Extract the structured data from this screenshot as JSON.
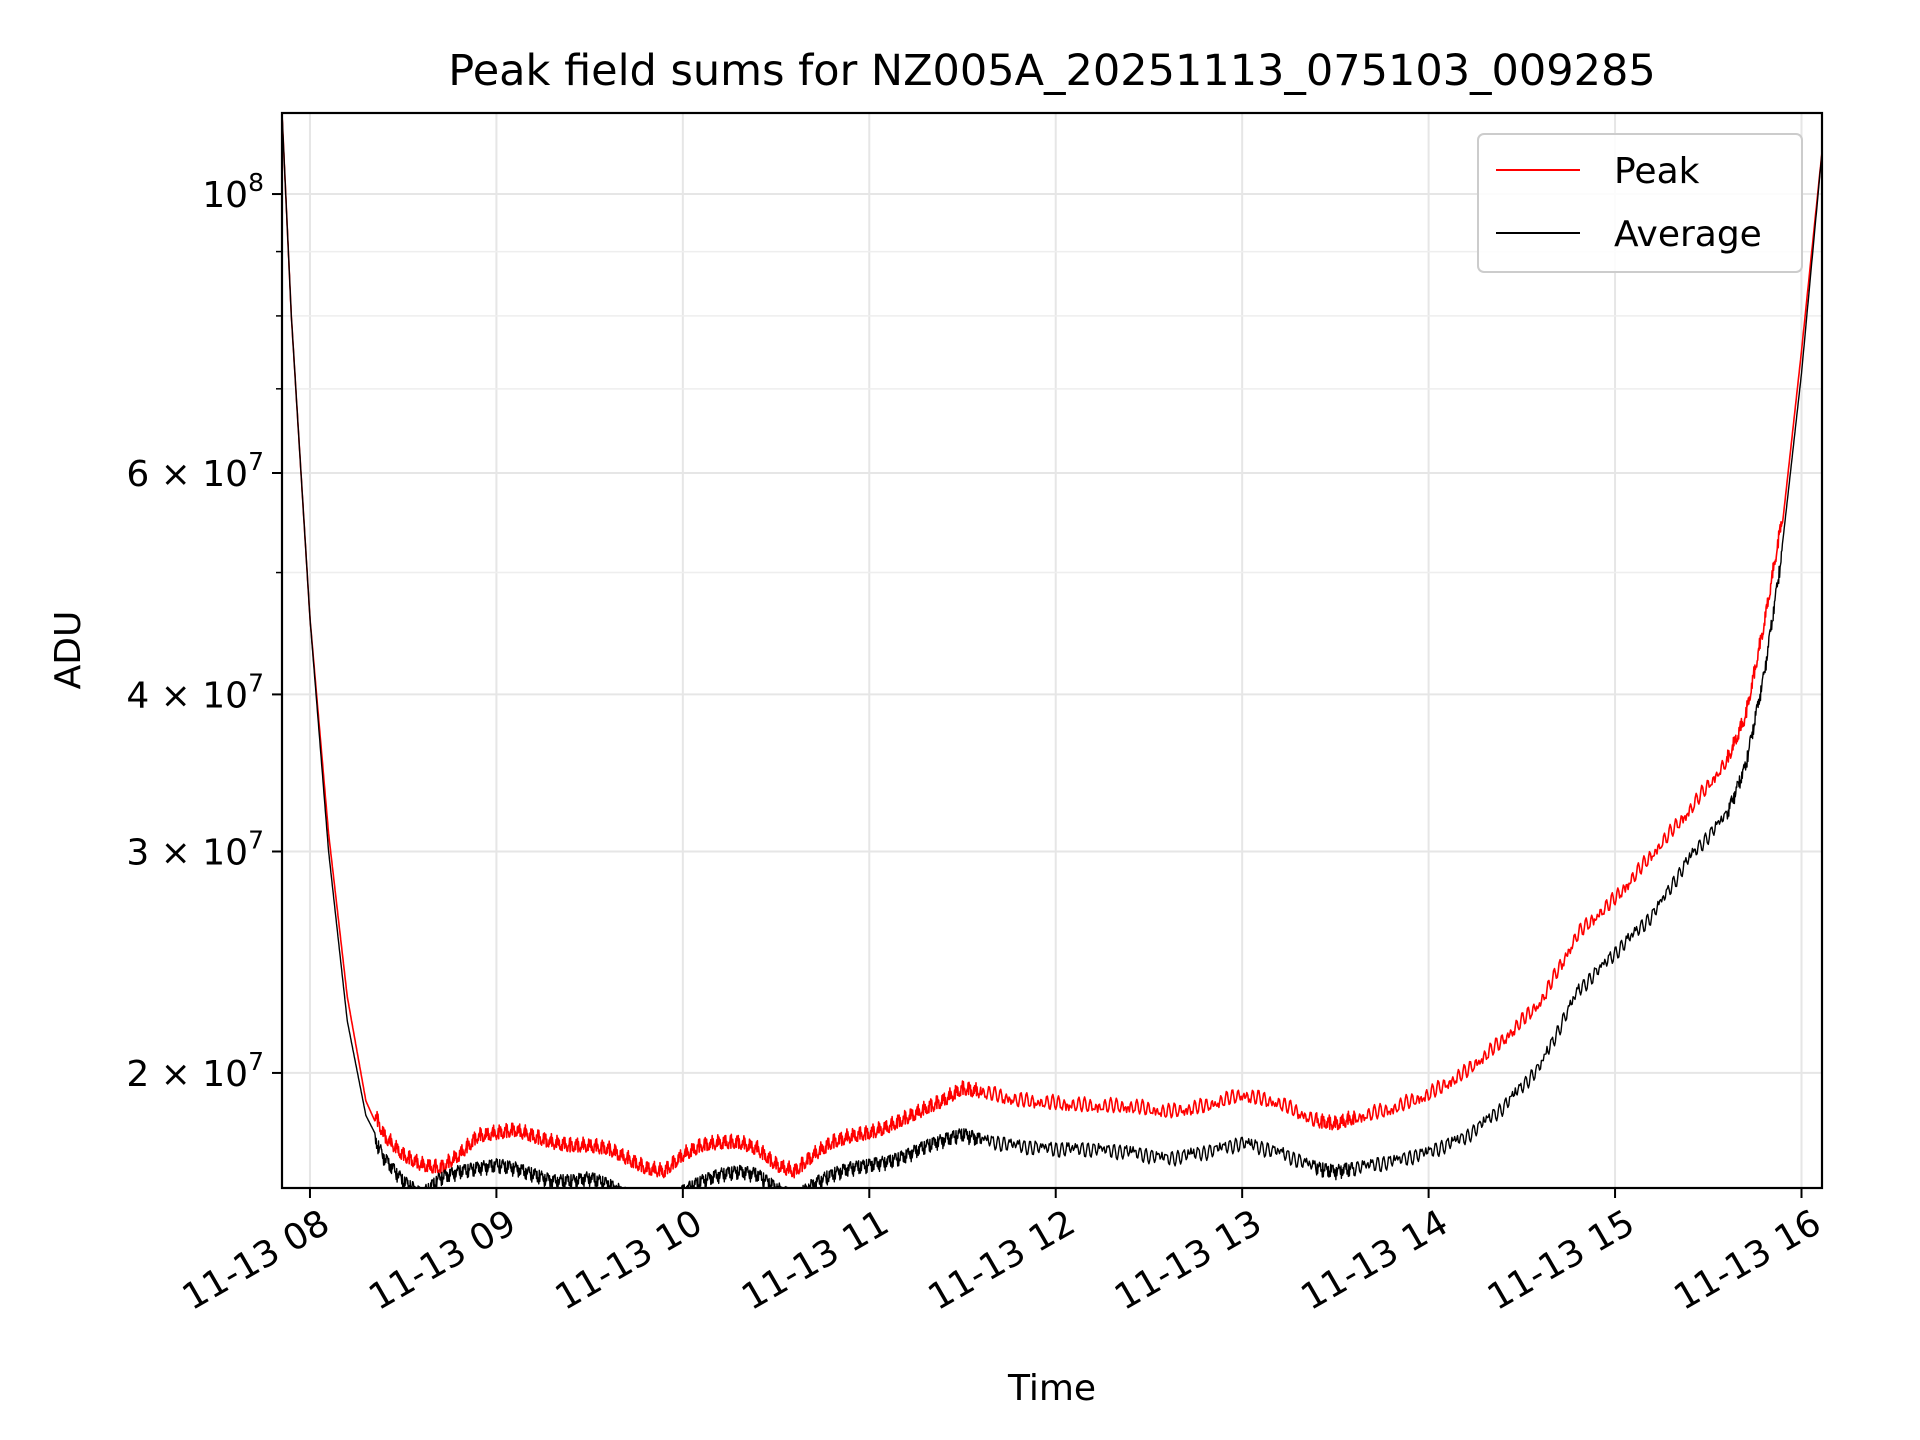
{
  "chart_data": {
    "type": "line",
    "title": "Peak field sums for NZ005A_20251113_075103_009285",
    "xlabel": "Time",
    "ylabel": "ADU",
    "yscale": "log",
    "xlim": [
      7.85,
      16.11
    ],
    "ylim": [
      16200000,
      116000000
    ],
    "grid": true,
    "legend_position": "top-right",
    "x_ticks": [
      {
        "value": 8,
        "label": "11-13 08"
      },
      {
        "value": 9,
        "label": "11-13 09"
      },
      {
        "value": 10,
        "label": "11-13 10"
      },
      {
        "value": 11,
        "label": "11-13 11"
      },
      {
        "value": 12,
        "label": "11-13 12"
      },
      {
        "value": 13,
        "label": "11-13 13"
      },
      {
        "value": 14,
        "label": "11-13 14"
      },
      {
        "value": 15,
        "label": "11-13 15"
      },
      {
        "value": 16,
        "label": "11-13 16"
      }
    ],
    "y_ticks": [
      {
        "value": 100000000,
        "mantissa": "",
        "base": "10",
        "exp": "8"
      },
      {
        "value": 60000000,
        "mantissa": "6",
        "base": "10",
        "exp": "7"
      },
      {
        "value": 40000000,
        "mantissa": "4",
        "base": "10",
        "exp": "7"
      },
      {
        "value": 30000000,
        "mantissa": "3",
        "base": "10",
        "exp": "7"
      },
      {
        "value": 20000000,
        "mantissa": "2",
        "base": "10",
        "exp": "7"
      }
    ],
    "y_minor_ticks": [
      50000000,
      70000000,
      80000000,
      90000000
    ],
    "series": [
      {
        "name": "Peak",
        "color": "#ff0000",
        "x": [
          7.85,
          7.9,
          8.0,
          8.1,
          8.2,
          8.3,
          8.4,
          8.5,
          8.6,
          8.7,
          8.8,
          8.9,
          9.0,
          9.1,
          9.2,
          9.3,
          9.4,
          9.5,
          9.6,
          9.7,
          9.8,
          9.9,
          10.0,
          10.1,
          10.2,
          10.3,
          10.4,
          10.5,
          10.6,
          10.7,
          10.8,
          10.9,
          11.0,
          11.1,
          11.2,
          11.3,
          11.4,
          11.5,
          11.6,
          11.8,
          12.0,
          12.2,
          12.4,
          12.6,
          12.8,
          13.0,
          13.2,
          13.4,
          13.5,
          13.6,
          13.8,
          14.0,
          14.2,
          14.4,
          14.6,
          14.8,
          15.0,
          15.2,
          15.4,
          15.6,
          15.7,
          15.8,
          15.9,
          16.0,
          16.11
        ],
        "y": [
          116000000,
          80000000,
          46000000,
          31000000,
          23000000,
          19000000,
          17600000,
          17000000,
          16700000,
          16600000,
          17000000,
          17600000,
          17700000,
          17800000,
          17600000,
          17400000,
          17300000,
          17300000,
          17200000,
          16900000,
          16600000,
          16500000,
          17000000,
          17300000,
          17400000,
          17400000,
          17200000,
          16700000,
          16500000,
          17000000,
          17400000,
          17600000,
          17700000,
          17900000,
          18200000,
          18500000,
          18800000,
          19200000,
          19100000,
          18800000,
          18700000,
          18600000,
          18600000,
          18400000,
          18600000,
          19000000,
          18700000,
          18100000,
          18000000,
          18200000,
          18500000,
          19000000,
          19800000,
          21000000,
          22500000,
          25500000,
          27200000,
          29500000,
          32000000,
          35000000,
          38000000,
          45000000,
          55000000,
          75000000,
          108000000
        ]
      },
      {
        "name": "Average",
        "color": "#000000",
        "x": [
          7.85,
          7.9,
          8.0,
          8.1,
          8.2,
          8.3,
          8.4,
          8.5,
          8.6,
          8.7,
          8.8,
          8.9,
          9.0,
          9.1,
          9.2,
          9.3,
          9.4,
          9.5,
          9.6,
          9.7,
          9.8,
          9.9,
          10.0,
          10.1,
          10.2,
          10.3,
          10.4,
          10.5,
          10.6,
          10.7,
          10.8,
          10.9,
          11.0,
          11.1,
          11.2,
          11.3,
          11.4,
          11.5,
          11.6,
          11.8,
          12.0,
          12.2,
          12.4,
          12.6,
          12.8,
          13.0,
          13.2,
          13.4,
          13.5,
          13.6,
          13.8,
          14.0,
          14.2,
          14.4,
          14.6,
          14.8,
          15.0,
          15.2,
          15.4,
          15.6,
          15.7,
          15.8,
          15.9,
          16.0,
          16.11
        ],
        "y": [
          116000000,
          80000000,
          46000000,
          30000000,
          22000000,
          18500000,
          17300000,
          16600000,
          16200000,
          16700000,
          16900000,
          17000000,
          17100000,
          17000000,
          16800000,
          16600000,
          16600000,
          16700000,
          16500000,
          16200000,
          16000000,
          15900000,
          16300000,
          16600000,
          16800000,
          16900000,
          16800000,
          16400000,
          16100000,
          16500000,
          16800000,
          17000000,
          17100000,
          17200000,
          17400000,
          17700000,
          17900000,
          18100000,
          17900000,
          17700000,
          17600000,
          17600000,
          17500000,
          17300000,
          17500000,
          17800000,
          17500000,
          17000000,
          16900000,
          17000000,
          17200000,
          17500000,
          18000000,
          19000000,
          20500000,
          23500000,
          25200000,
          27000000,
          30000000,
          32500000,
          35500000,
          42000000,
          53000000,
          72000000,
          108000000
        ]
      }
    ]
  }
}
